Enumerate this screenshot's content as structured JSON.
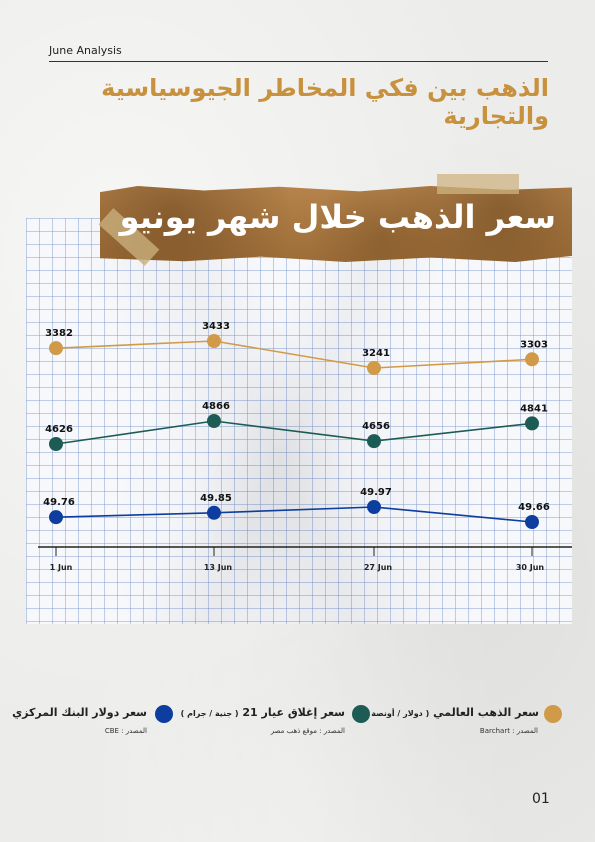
{
  "header": {
    "label": "June Analysis",
    "title": "الذهب بين فكي المخاطر الجيوسياسية والتجارية"
  },
  "banner_title": "سعر الذهب خلال شهر يونيو",
  "chart_data": {
    "type": "line",
    "categories": [
      "1 Jun",
      "13 Jun",
      "27 Jun",
      "30 Jun"
    ],
    "series": [
      {
        "name": "سعر الذهب العالمي",
        "unit": "( دولار / أونصة )",
        "source": "المصدر : Barchart",
        "color": "#d09a48",
        "values": [
          3382,
          3433,
          3241,
          3303
        ]
      },
      {
        "name": "سعر إغلاق عيار 21",
        "unit": "( جنية / جرام )",
        "source": "المصدر : موقع ذهب مصر",
        "color": "#1d5c55",
        "values": [
          4626,
          4866,
          4656,
          4841
        ]
      },
      {
        "name": "سعر دولار البنك المركزي",
        "unit": "",
        "source": "المصدر : CBE",
        "color": "#0d3d9e",
        "values": [
          49.76,
          49.85,
          49.97,
          49.66
        ]
      }
    ],
    "value_labels": [
      [
        "3382",
        "3433",
        "3241",
        "3303"
      ],
      [
        "4626",
        "4866",
        "4656",
        "4841"
      ],
      [
        "49.76",
        "49.85",
        "49.97",
        "49.66"
      ]
    ],
    "grid": false,
    "legend_position": "bottom"
  },
  "page_number": "01"
}
